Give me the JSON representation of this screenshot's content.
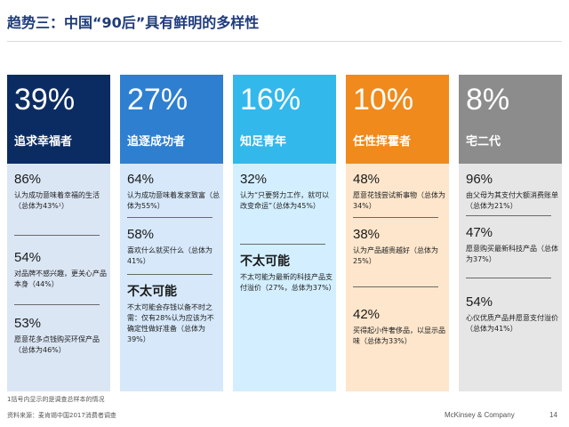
{
  "title": "趋势三：中国“90后”具有鲜明的多样性",
  "colors": {
    "col1_head": "#0b2c63",
    "col1_body": "#dbe6f5",
    "col2_head": "#2e7fd0",
    "col2_body": "#d6e8fa",
    "col3_head": "#33b8ec",
    "col3_body": "#d3efff",
    "col4_head": "#f08a1c",
    "col4_body": "#fde6cc",
    "col5_head": "#8c8c8c",
    "col5_body": "#e6e6e6"
  },
  "columns": [
    {
      "pct": "39%",
      "label": "追求幸福者",
      "stats": [
        {
          "value": "86%",
          "desc": "认为成功意味着幸福的生活（总体为43%¹）"
        },
        {
          "value": "54%",
          "desc": "对品牌不感兴趣，更关心产品本身（44%）"
        },
        {
          "value": "53%",
          "desc": "愿意花多点钱购买环保产品（总体为46%）"
        }
      ]
    },
    {
      "pct": "27%",
      "label": "追逐成功者",
      "stats": [
        {
          "value": "64%",
          "desc": "认为成功意味着发家致富（总体为55%）"
        },
        {
          "value": "58%",
          "desc": "喜欢什么就买什么（总体为41%）"
        },
        {
          "value": "不太可能",
          "desc": "不太可能会存钱以备不时之需：仅有28%认为应该为不确定性做好准备（总体为39%）"
        }
      ]
    },
    {
      "pct": "16%",
      "label": "知足青年",
      "stats": [
        {
          "value": "32%",
          "desc": "认为“只要努力工作，就可以改变命运”（总体为45%）"
        },
        {
          "value": "不太可能",
          "desc": "不太可能为最新的科技产品支付溢价（27%，总体为37%）"
        }
      ]
    },
    {
      "pct": "10%",
      "label": "任性挥霍者",
      "stats": [
        {
          "value": "48%",
          "desc": "愿意花钱尝试新事物（总体为34%）"
        },
        {
          "value": "38%",
          "desc": "认为产品越贵越好（总体为25%）"
        },
        {
          "value": "42%",
          "desc": "买得起小件奢侈品，以显示品味（总体为33%）"
        }
      ]
    },
    {
      "pct": "8%",
      "label": "宅二代",
      "stats": [
        {
          "value": "96%",
          "desc": "由父母为其支付大额消费账单（总体为21%）"
        },
        {
          "value": "47%",
          "desc": "愿意购买最新科技产品（总体为37%）"
        },
        {
          "value": "54%",
          "desc": "心仪优质产品并愿意支付溢价（总体为41%）"
        }
      ]
    }
  ],
  "footnote": "1括号内显示的是调查总样本的情况",
  "source": "资料来源：麦肯锡中国2017消费者调查",
  "brand": "McKinsey & Company",
  "page": "14"
}
